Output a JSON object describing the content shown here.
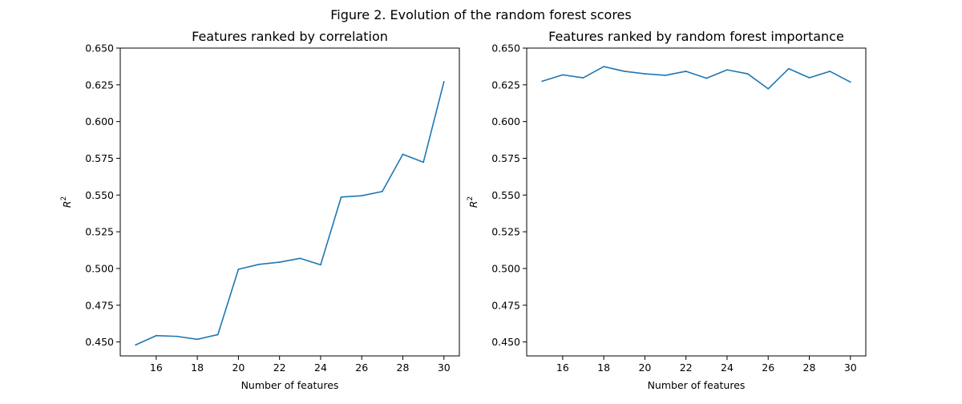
{
  "figure": {
    "suptitle": "Figure 2. Evolution of the random forest scores"
  },
  "colors": {
    "line": "#1f77b4",
    "axis": "#000000",
    "background": "#ffffff"
  },
  "chart_data": [
    {
      "type": "line",
      "title": "Features ranked by correlation",
      "xlabel": "Number of features",
      "ylabel": "R",
      "ylabel_superscript": "2",
      "xlim": [
        14.25,
        30.75
      ],
      "ylim": [
        0.4405,
        0.65
      ],
      "xticks": [
        16,
        18,
        20,
        22,
        24,
        26,
        28,
        30
      ],
      "yticks": [
        0.45,
        0.475,
        0.5,
        0.525,
        0.55,
        0.575,
        0.6,
        0.625,
        0.65
      ],
      "grid": false,
      "x": [
        15,
        16,
        17,
        18,
        19,
        20,
        21,
        22,
        23,
        24,
        25,
        26,
        27,
        28,
        29,
        30
      ],
      "series": [
        {
          "values": [
            0.448,
            0.4543,
            0.4538,
            0.4518,
            0.455,
            0.4995,
            0.5028,
            0.5043,
            0.5069,
            0.5025,
            0.5486,
            0.5495,
            0.5524,
            0.5777,
            0.5723,
            0.6271
          ]
        }
      ]
    },
    {
      "type": "line",
      "title": "Features ranked by random forest importance",
      "xlabel": "Number of features",
      "ylabel": "R",
      "ylabel_superscript": "2",
      "xlim": [
        14.25,
        30.75
      ],
      "ylim": [
        0.4405,
        0.65
      ],
      "xticks": [
        16,
        18,
        20,
        22,
        24,
        26,
        28,
        30
      ],
      "yticks": [
        0.45,
        0.475,
        0.5,
        0.525,
        0.55,
        0.575,
        0.6,
        0.625,
        0.65
      ],
      "grid": false,
      "x": [
        15,
        16,
        17,
        18,
        19,
        20,
        21,
        22,
        23,
        24,
        25,
        26,
        27,
        28,
        29,
        30
      ],
      "series": [
        {
          "values": [
            0.6274,
            0.6318,
            0.6298,
            0.6374,
            0.6342,
            0.6325,
            0.6315,
            0.6342,
            0.6295,
            0.6352,
            0.6325,
            0.6223,
            0.636,
            0.6298,
            0.6342,
            0.6269
          ]
        }
      ]
    }
  ]
}
